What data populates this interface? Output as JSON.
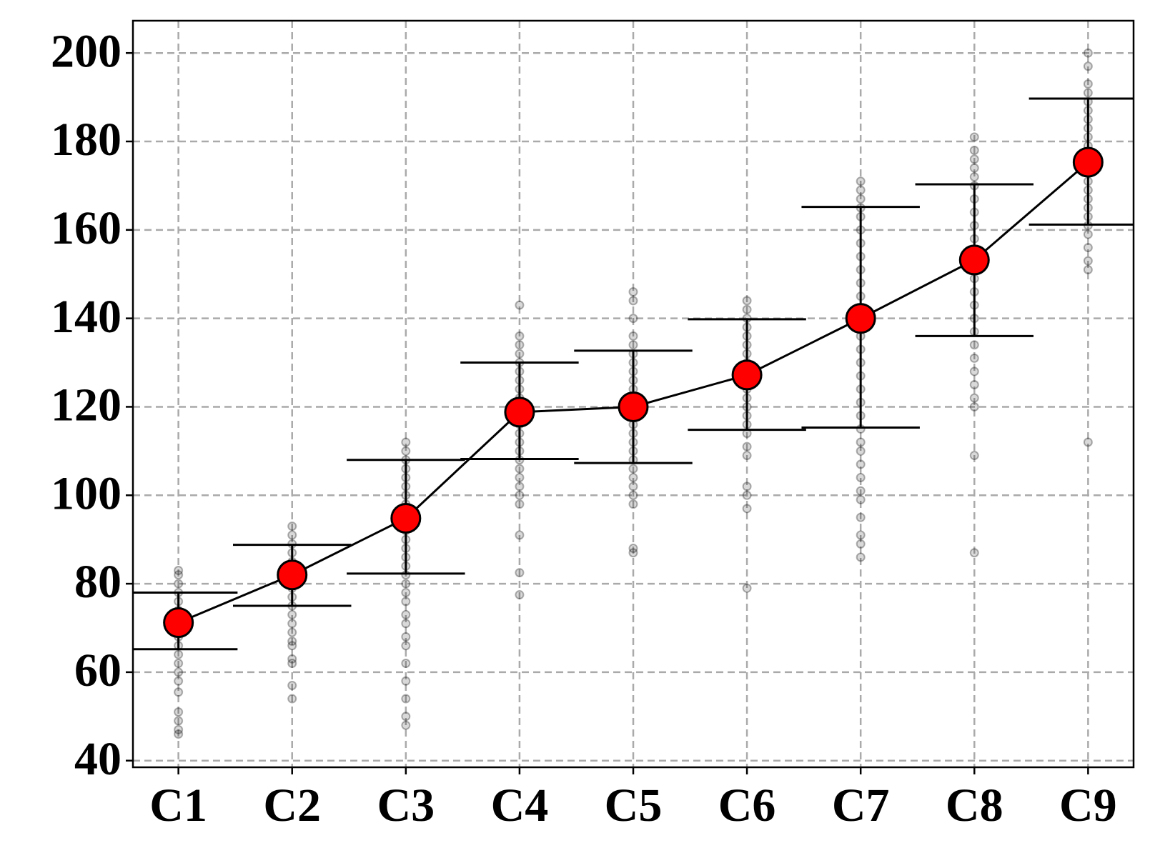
{
  "chart_data": {
    "type": "errorbar",
    "categories": [
      "C1",
      "C2",
      "C3",
      "C4",
      "C5",
      "C6",
      "C7",
      "C8",
      "C9"
    ],
    "means": [
      71.2,
      82,
      94.8,
      118.8,
      120,
      127.2,
      140,
      153.2,
      175.3
    ],
    "upper": [
      78,
      88.8,
      108,
      130,
      132.7,
      139.8,
      165.2,
      170.3,
      189.7
    ],
    "lower": [
      65.2,
      75,
      82.3,
      108.2,
      107.3,
      114.8,
      115.3,
      136,
      161.2
    ],
    "points": [
      [
        83,
        82,
        80,
        78,
        76,
        74,
        72,
        70,
        68,
        66,
        64,
        62,
        60,
        58,
        55.5,
        51,
        49,
        47,
        46
      ],
      [
        93,
        91,
        89,
        87,
        85,
        83,
        81,
        79,
        77,
        75,
        73,
        71,
        69,
        67,
        66,
        63,
        62,
        57,
        54
      ],
      [
        112,
        110,
        108,
        106,
        104,
        102,
        100,
        98,
        96,
        94,
        92,
        90,
        88,
        86,
        84,
        82,
        80,
        78,
        76,
        73,
        71,
        68,
        66,
        62,
        58,
        54,
        50,
        48
      ],
      [
        143,
        136,
        134,
        132,
        130,
        128,
        126,
        124,
        122,
        120,
        118,
        116,
        114,
        112,
        110,
        108,
        106,
        104,
        102,
        100,
        98,
        91,
        82.5,
        77.5
      ],
      [
        146,
        144,
        140,
        136,
        134,
        132,
        130,
        128,
        126,
        124,
        122,
        120,
        118,
        116,
        114,
        112,
        110,
        108,
        106,
        104,
        102,
        100,
        98,
        88,
        87
      ],
      [
        144,
        142,
        140,
        138,
        136,
        134,
        132,
        130,
        128,
        126,
        124,
        122,
        120,
        118,
        116,
        114,
        111,
        109,
        102,
        100,
        97,
        79
      ],
      [
        171,
        169,
        167,
        165,
        163,
        160,
        157,
        154,
        151,
        148,
        145,
        142,
        139,
        136,
        133,
        130,
        127,
        124,
        121,
        118,
        115,
        112,
        110,
        107,
        104,
        101,
        99,
        95,
        91,
        89,
        86
      ],
      [
        181,
        178,
        176,
        174,
        172,
        170,
        167,
        164,
        161,
        158,
        155,
        152,
        149,
        146,
        143,
        140,
        137,
        134,
        131,
        128,
        125,
        122,
        120,
        109,
        87
      ],
      [
        200,
        197,
        193,
        191,
        189,
        187,
        185,
        183,
        181,
        179,
        177,
        175,
        173,
        171,
        169,
        167,
        165,
        163,
        161,
        159,
        156,
        153,
        151,
        112
      ]
    ],
    "mean_color": "#ff0000",
    "line_color": "#000000",
    "point_color": "#000000",
    "ylim": [
      38.5,
      207.3
    ],
    "yticks": [
      40,
      60,
      80,
      100,
      120,
      140,
      160,
      180,
      200
    ],
    "grid": true
  }
}
